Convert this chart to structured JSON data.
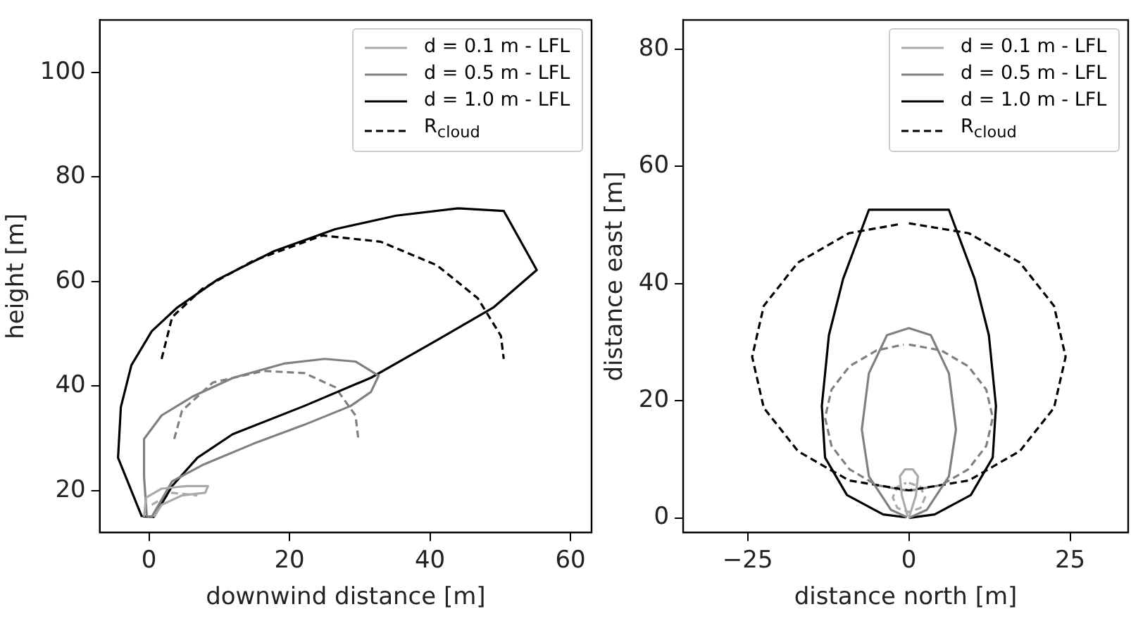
{
  "chart_data": [
    {
      "type": "line",
      "xlabel": "downwind distance [m]",
      "ylabel": "height [m]",
      "xlim": [
        -7,
        63
      ],
      "ylim": [
        12,
        110
      ],
      "xticks": [
        0,
        20,
        40,
        60
      ],
      "yticks": [
        20,
        40,
        60,
        80,
        100
      ],
      "grid": false,
      "legend": "top right",
      "series": [
        {
          "name": "d = 0.1 m - LFL",
          "color": "#aaaaaa",
          "x": [
            -0.7,
            -0.4,
            1.8,
            5.4,
            8.4,
            8,
            4.7,
            1.8,
            0.7
          ],
          "values": [
            15,
            18.7,
            20.4,
            20.9,
            20.9,
            19.6,
            19.1,
            17.3,
            15
          ]
        },
        {
          "name": "d = 0.5 m - LFL",
          "color": "#808080",
          "x": [
            -0.3,
            -0.7,
            -0.7,
            1.8,
            6.2,
            12,
            19.2,
            25,
            29.4,
            32.7,
            31.6,
            28.7,
            22.1,
            14.9,
            7.6,
            3.3,
            0.4,
            -0.2
          ],
          "values": [
            15,
            22.7,
            29.9,
            34.4,
            38,
            41.6,
            44.3,
            45.2,
            44.7,
            42,
            38.9,
            36.2,
            32.6,
            29,
            24.9,
            21.8,
            15,
            15.1
          ]
        },
        {
          "name": "d = 1.0 m - LFL",
          "color": "#000000",
          "x": [
            -1,
            -4.4,
            -4,
            -2.5,
            0.4,
            4,
            9.8,
            17.8,
            26.5,
            35.2,
            44,
            50.5,
            55.2,
            49,
            41,
            31.6,
            22.1,
            11.9,
            6.9,
            3.3,
            0.7,
            -0.9
          ],
          "values": [
            15,
            26.3,
            36,
            44,
            50.5,
            55,
            60.4,
            65.8,
            70,
            72.6,
            74,
            73.5,
            62.2,
            55,
            48.8,
            41.6,
            36.2,
            30.8,
            26.3,
            20.9,
            15,
            15.1
          ]
        },
        {
          "name": "R$_{cloud}$",
          "color": "#000000",
          "line_style": "dashed",
          "x": [
            1.8,
            3.3,
            7.6,
            14.9,
            24.7,
            33,
            41,
            46.8,
            50.1,
            50.5
          ],
          "values": [
            45.2,
            53.2,
            58.6,
            64,
            68.8,
            67.6,
            63.1,
            56.8,
            49.6,
            45.2
          ]
        },
        {
          "color": "#808080",
          "line_style": "dashed",
          "x": [
            3.6,
            4.7,
            9.1,
            16.3,
            22.1,
            26.5,
            29.4,
            29.8
          ],
          "values": [
            29.9,
            35.3,
            40.7,
            42.9,
            42.5,
            39.8,
            34.4,
            29.9
          ]
        },
        {
          "color": "#aaaaaa",
          "line_style": "dashed",
          "x": [
            0.4,
            3.3,
            6.9
          ],
          "values": [
            17.3,
            19.6,
            19.1
          ]
        }
      ]
    },
    {
      "type": "line",
      "xlabel": "distance north [m]",
      "ylabel": "distance east [m]",
      "xlim": [
        -35,
        34
      ],
      "ylim": [
        -2.5,
        85
      ],
      "xticks": [
        {
          "value": -25,
          "label": "−25"
        },
        0,
        25
      ],
      "yticks": [
        0,
        20,
        40,
        60,
        80
      ],
      "grid": false,
      "legend": "top right",
      "series": [
        {
          "name": "d = 0.1 m - LFL",
          "color": "#aaaaaa",
          "x": [
            0,
            1.1,
            1.4,
            0.6,
            -0.6,
            -1.4,
            -1.1,
            -0.2
          ],
          "values": [
            0,
            3.9,
            7.1,
            8.3,
            8.3,
            7.1,
            3.9,
            0.3
          ]
        },
        {
          "name": "d = 0.5 m - LFL",
          "color": "#808080",
          "x": [
            0,
            2.8,
            6.2,
            7.3,
            6.2,
            3.4,
            0,
            -3.4,
            -6.2,
            -7.3,
            -6.2,
            -2.8,
            -0.3
          ],
          "values": [
            0,
            1.4,
            7.1,
            15.1,
            24.7,
            31.2,
            32.4,
            31.2,
            24.7,
            15.1,
            7.1,
            1.4,
            0.1
          ]
        },
        {
          "name": "d = 1.0 m - LFL",
          "color": "#000000",
          "x": [
            0,
            4,
            9.6,
            13,
            13.5,
            12.4,
            10.2,
            6.2,
            -6.2,
            -10.2,
            -12.4,
            -13.5,
            -13,
            -9.6,
            -4,
            -0.5
          ],
          "values": [
            0,
            0.6,
            3.9,
            10.3,
            19.1,
            31.2,
            40.8,
            52.6,
            52.6,
            40.8,
            31.2,
            19.1,
            10.3,
            3.9,
            0.6,
            0.1
          ]
        },
        {
          "name": "R$_{cloud}$",
          "color": "#000000",
          "line_style": "dashed",
          "x": [
            0,
            9.3,
            17.2,
            22.5,
            24.3,
            22.5,
            17.2,
            9.3,
            0,
            -9.3,
            -17.2,
            -22.5,
            -24.3,
            -22.5,
            -17.2,
            -9.3,
            -1.2
          ],
          "values": [
            50.3,
            48.6,
            43.6,
            36.2,
            27.5,
            18.8,
            11.4,
            6.4,
            4.7,
            6.4,
            11.4,
            18.8,
            27.5,
            36.2,
            43.6,
            48.6,
            50.2
          ]
        },
        {
          "color": "#808080",
          "line_style": "dashed",
          "x": [
            0,
            5,
            9.2,
            12,
            13,
            12,
            9.2,
            5,
            0,
            -5,
            -9.2,
            -12,
            -13,
            -12,
            -9.2,
            -5,
            -0.8
          ],
          "values": [
            29.6,
            28.6,
            25.9,
            21.9,
            17.1,
            12.3,
            8.3,
            5.6,
            4.6,
            5.6,
            8.3,
            12.3,
            17.1,
            21.9,
            25.9,
            28.6,
            29.6
          ]
        },
        {
          "color": "#aaaaaa",
          "line_style": "dashed",
          "x": [
            0,
            1.8,
            2.5,
            1.8,
            0,
            -1.8,
            -2.5,
            -1.8,
            -0.4
          ],
          "values": [
            6,
            5.3,
            3.5,
            1.7,
            1,
            1.7,
            3.5,
            5.3,
            6
          ]
        }
      ]
    }
  ]
}
